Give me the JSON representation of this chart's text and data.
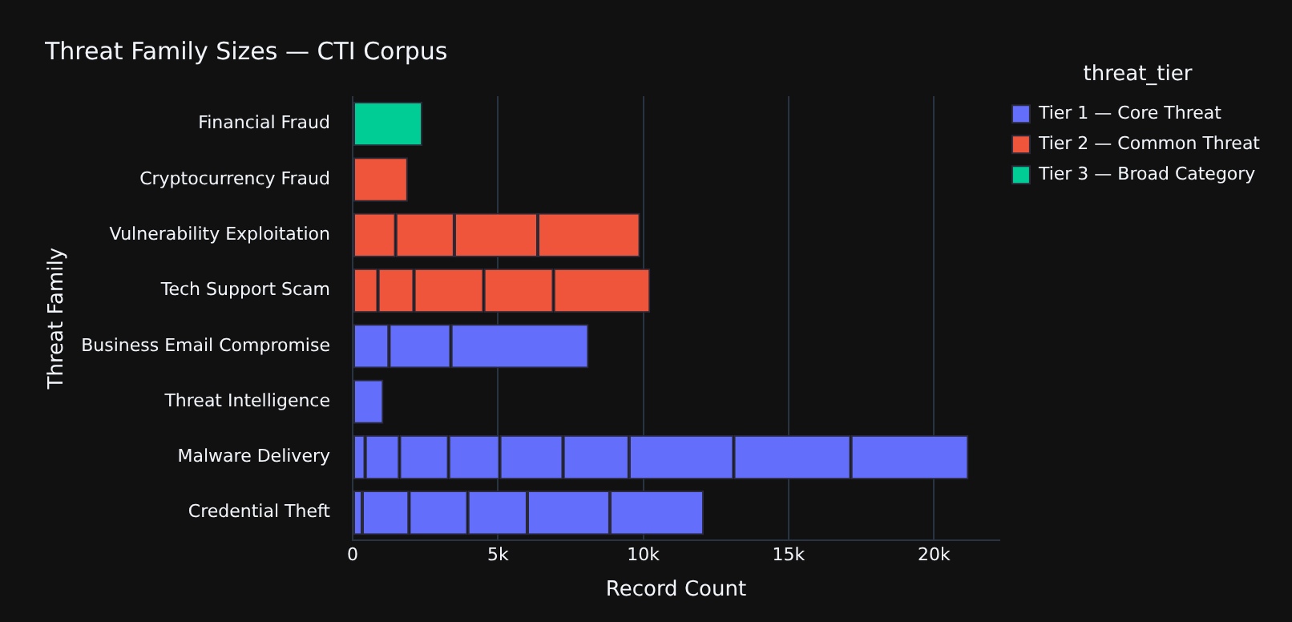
{
  "chart_data": {
    "type": "bar",
    "orientation": "horizontal",
    "stacked": true,
    "title": "Threat Family Sizes — CTI Corpus",
    "xlabel": "Record Count",
    "ylabel": "Threat Family",
    "legend_title": "threat_tier",
    "legend": "right",
    "grid": "x",
    "categories": [
      "Financial Fraud",
      "Cryptocurrency Fraud",
      "Vulnerability Exploitation",
      "Tech Support Scam",
      "Business Email Compromise",
      "Threat Intelligence",
      "Malware Delivery",
      "Credential Theft"
    ],
    "xlim": [
      0,
      22250
    ],
    "xticks": [
      {
        "value": 0,
        "label": "0"
      },
      {
        "value": 5000,
        "label": "5k"
      },
      {
        "value": 10000,
        "label": "10k"
      },
      {
        "value": 15000,
        "label": "15k"
      },
      {
        "value": 20000,
        "label": "20k"
      }
    ],
    "series": [
      {
        "name": "Tier 1 — Core Threat",
        "color": "#636efa",
        "values": [
          null,
          null,
          null,
          null,
          1250,
          1060,
          430,
          330
        ]
      },
      {
        "color": "#636efa",
        "values": [
          null,
          null,
          null,
          null,
          2130,
          null,
          1180,
          1610
        ]
      },
      {
        "color": "#636efa",
        "values": [
          null,
          null,
          null,
          null,
          4740,
          null,
          1690,
          2020
        ]
      },
      {
        "color": "#636efa",
        "values": [
          null,
          null,
          null,
          null,
          null,
          null,
          1760,
          2050
        ]
      },
      {
        "color": "#636efa",
        "values": [
          null,
          null,
          null,
          null,
          null,
          null,
          2180,
          2840
        ]
      },
      {
        "color": "#636efa",
        "values": [
          null,
          null,
          null,
          null,
          null,
          null,
          2270,
          3230
        ]
      },
      {
        "color": "#636efa",
        "values": [
          null,
          null,
          null,
          null,
          null,
          null,
          3600,
          null
        ]
      },
      {
        "color": "#636efa",
        "values": [
          null,
          null,
          null,
          null,
          null,
          null,
          4030,
          null
        ]
      },
      {
        "color": "#636efa",
        "values": [
          null,
          null,
          null,
          null,
          null,
          null,
          4050,
          null
        ]
      },
      {
        "name": "Tier 2 — Common Threat",
        "color": "#ef553b",
        "values": [
          null,
          1900,
          1480,
          870,
          null,
          null,
          null,
          null
        ]
      },
      {
        "color": "#ef553b",
        "values": [
          null,
          null,
          2020,
          1240,
          null,
          null,
          null,
          null
        ]
      },
      {
        "color": "#ef553b",
        "values": [
          null,
          null,
          2870,
          2400,
          null,
          null,
          null,
          null
        ]
      },
      {
        "color": "#ef553b",
        "values": [
          null,
          null,
          3520,
          2400,
          null,
          null,
          null,
          null
        ]
      },
      {
        "color": "#ef553b",
        "values": [
          null,
          null,
          null,
          3330,
          null,
          null,
          null,
          null
        ]
      },
      {
        "name": "Tier 3 — Broad Category",
        "color": "#00cc96",
        "values": [
          2400,
          null,
          null,
          null,
          null,
          null,
          null,
          null
        ]
      }
    ]
  }
}
